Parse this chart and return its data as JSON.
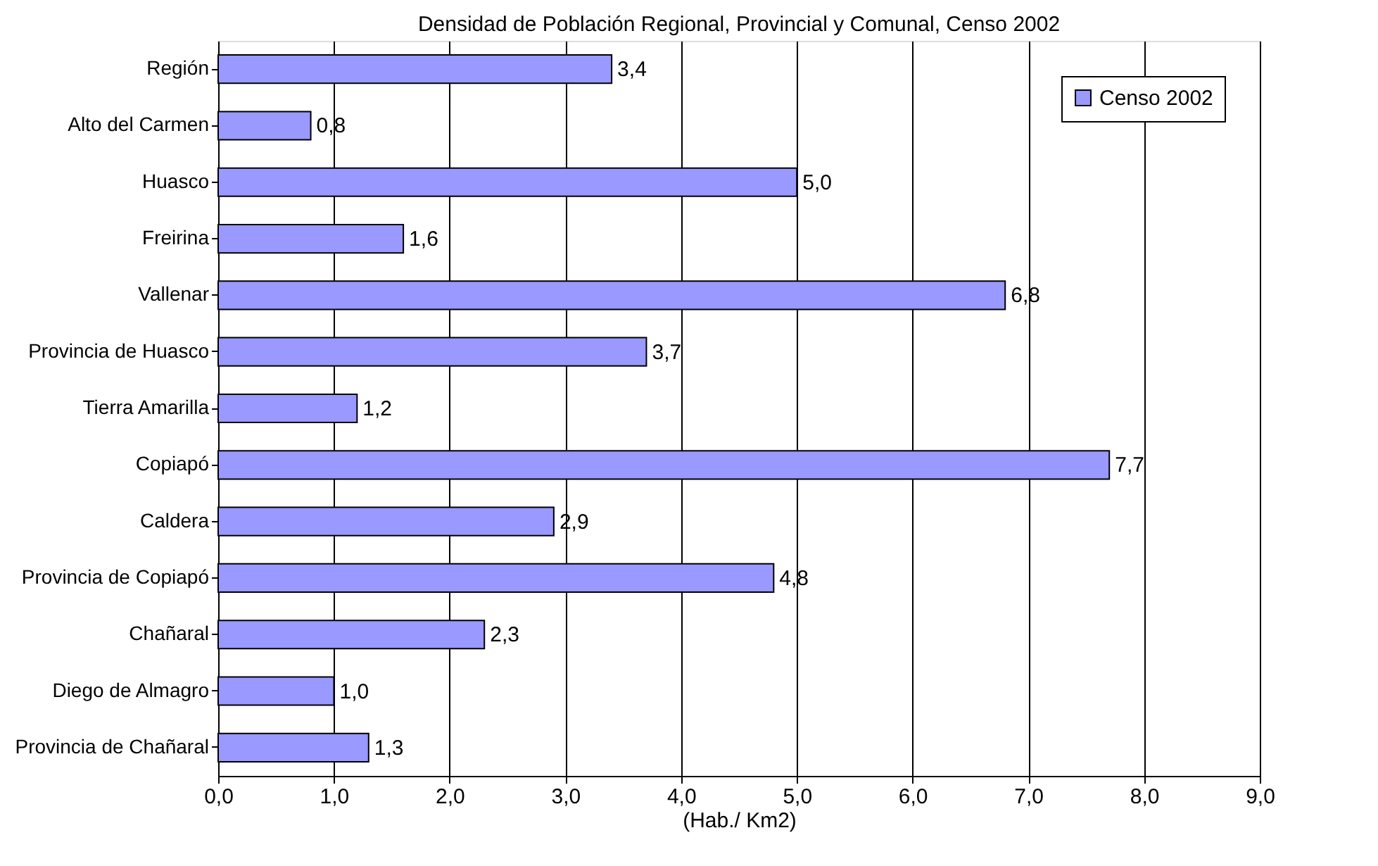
{
  "chart_data": {
    "type": "bar",
    "orientation": "horizontal",
    "title": "Densidad de Población Regional, Provincial y Comunal, Censo 2002",
    "xlabel": "(Hab./ Km2)",
    "categories": [
      "Región",
      "Alto del Carmen",
      "Huasco",
      "Freirina",
      "Vallenar",
      "Provincia de Huasco",
      "Tierra Amarilla",
      "Copiapó",
      "Caldera",
      "Provincia de Copiapó",
      "Chañaral",
      "Diego de Almagro",
      "Provincia de Chañaral"
    ],
    "series": [
      {
        "name": "Censo 2002",
        "color": "#9999ff",
        "values": [
          3.4,
          0.8,
          5.0,
          1.6,
          6.8,
          3.7,
          1.2,
          7.7,
          2.9,
          4.8,
          2.3,
          1.0,
          1.3
        ],
        "value_labels": [
          "3,4",
          "0,8",
          "5,0",
          "1,6",
          "6,8",
          "3,7",
          "1,2",
          "7,7",
          "2,9",
          "4,8",
          "2,3",
          "1,0",
          "1,3"
        ]
      }
    ],
    "xlim": [
      0,
      9
    ],
    "xticks": [
      {
        "value": 0,
        "label": "0,0"
      },
      {
        "value": 1,
        "label": "1,0"
      },
      {
        "value": 2,
        "label": "2,0"
      },
      {
        "value": 3,
        "label": "3,0"
      },
      {
        "value": 4,
        "label": "4,0"
      },
      {
        "value": 5,
        "label": "5,0"
      },
      {
        "value": 6,
        "label": "6,0"
      },
      {
        "value": 7,
        "label": "7,0"
      },
      {
        "value": 8,
        "label": "8,0"
      },
      {
        "value": 9,
        "label": "9,0"
      }
    ],
    "grid": "x",
    "legend": "top right"
  }
}
